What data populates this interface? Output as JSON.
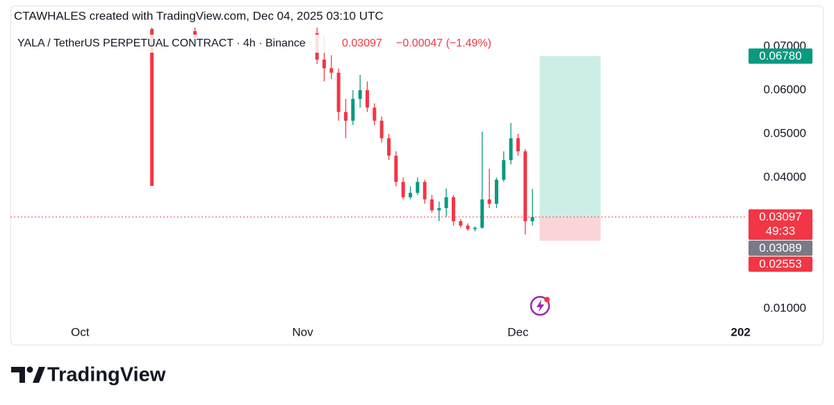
{
  "header": {
    "caption": "CTAWHALES created with TradingView.com, Dec 04, 2025 03:10 UTC"
  },
  "chart_data": {
    "type": "candlestick",
    "title": "YALA / TetherUS PERPETUAL CONTRACT · 4h · Binance",
    "last_price": "0.03097",
    "change": "−0.00047 (−1.49%)",
    "up_color": "#089981",
    "down_color": "#f23645",
    "grid": false,
    "candles": {
      "x": [
        10,
        16,
        33,
        34,
        35,
        36,
        37,
        38,
        39,
        40,
        41,
        42,
        43,
        44,
        45,
        46,
        47,
        48,
        49,
        50,
        51,
        52,
        53,
        54,
        55,
        56,
        57,
        58,
        59,
        60,
        61,
        62,
        63
      ],
      "open": [
        0.074,
        0.0735,
        0.073,
        0.067,
        0.065,
        0.064,
        0.055,
        0.053,
        0.058,
        0.06,
        0.056,
        0.053,
        0.049,
        0.045,
        0.039,
        0.0355,
        0.0365,
        0.039,
        0.035,
        0.0325,
        0.033,
        0.0355,
        0.03,
        0.029,
        0.0282,
        0.0285,
        0.035,
        0.034,
        0.0395,
        0.044,
        0.049,
        0.046,
        0.03
      ],
      "high": [
        0.0743,
        0.0743,
        0.0743,
        0.0725,
        0.068,
        0.065,
        0.058,
        0.06,
        0.0635,
        0.062,
        0.057,
        0.054,
        0.05,
        0.046,
        0.04,
        0.038,
        0.04,
        0.0395,
        0.036,
        0.0345,
        0.0375,
        0.036,
        0.0305,
        0.0295,
        0.0288,
        0.0505,
        0.042,
        0.04,
        0.046,
        0.0525,
        0.05,
        0.0465,
        0.0374
      ],
      "low": [
        0.0381,
        0.0719,
        0.066,
        0.062,
        0.0625,
        0.053,
        0.049,
        0.052,
        0.056,
        0.055,
        0.052,
        0.048,
        0.044,
        0.038,
        0.035,
        0.035,
        0.036,
        0.034,
        0.032,
        0.03,
        0.031,
        0.029,
        0.0285,
        0.0278,
        0.0277,
        0.0283,
        0.033,
        0.033,
        0.039,
        0.043,
        0.045,
        0.027,
        0.029
      ],
      "close": [
        0.0381,
        0.072,
        0.067,
        0.065,
        0.064,
        0.055,
        0.053,
        0.058,
        0.06,
        0.056,
        0.053,
        0.049,
        0.045,
        0.039,
        0.0355,
        0.0365,
        0.039,
        0.035,
        0.0325,
        0.033,
        0.0355,
        0.03,
        0.029,
        0.0282,
        0.0285,
        0.035,
        0.034,
        0.0395,
        0.044,
        0.049,
        0.046,
        0.03,
        0.03097
      ]
    },
    "position": {
      "start": 64,
      "end": 72.5,
      "entry": 0.03097,
      "target": 0.0678,
      "stop": 0.02553,
      "profit_color": "#cdeee6",
      "loss_color": "#fbd5d8"
    },
    "price_badges": [
      {
        "value": 0.0678,
        "label": "0.06780",
        "color": "#089981"
      },
      {
        "value": 0.03097,
        "label": "0.03097",
        "countdown": "49:33",
        "color": "#f23645"
      },
      {
        "value": 0.03089,
        "label": "0.03089",
        "color": "#787b86"
      },
      {
        "value": 0.02553,
        "label": "0.02553",
        "color": "#f23645"
      }
    ],
    "xlim": [
      -9.7,
      92.9
    ],
    "xticks": [
      {
        "value": 0,
        "label": "Oct"
      },
      {
        "value": 31,
        "label": "Nov"
      },
      {
        "value": 61,
        "label": "Dec"
      },
      {
        "value": 92,
        "label": "202"
      }
    ],
    "ylim": [
      0.00175,
      0.07746
    ],
    "yticks": [
      {
        "value": 0.01,
        "label": "0.01000"
      },
      {
        "value": 0.04,
        "label": "0.04000"
      },
      {
        "value": 0.05,
        "label": "0.05000"
      },
      {
        "value": 0.06,
        "label": "0.06000"
      },
      {
        "value": 0.07,
        "label": "0.07000"
      }
    ]
  },
  "footer": {
    "brand": "TradingView"
  }
}
